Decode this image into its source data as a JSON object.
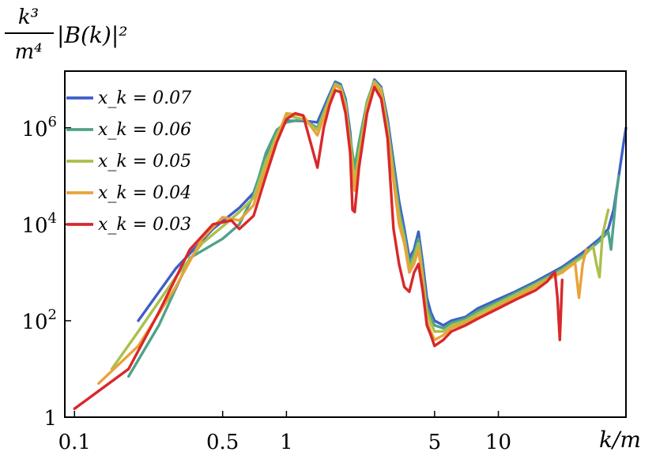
{
  "chart_data": {
    "type": "line",
    "title": "",
    "xlabel": "k/m",
    "ylabel": "k³/m⁴|B(k)|²",
    "ylabel_parts": {
      "num": "k³",
      "den": "m⁴",
      "rest": "|B(k)|²"
    },
    "x_scale": "log",
    "y_scale": "log",
    "xlim": [
      0.09,
      40
    ],
    "ylim": [
      1,
      15000000
    ],
    "x_ticks": [
      {
        "value": 0.1,
        "label": "0.1"
      },
      {
        "value": 0.5,
        "label": "0.5"
      },
      {
        "value": 1,
        "label": "1"
      },
      {
        "value": 5,
        "label": "5"
      },
      {
        "value": 10,
        "label": "10"
      }
    ],
    "y_ticks": [
      {
        "value": 1,
        "label": "1",
        "exp": ""
      },
      {
        "value": 100,
        "label": "10",
        "exp": "2"
      },
      {
        "value": 10000,
        "label": "10",
        "exp": "4"
      },
      {
        "value": 1000000,
        "label": "10",
        "exp": "6"
      }
    ],
    "grid": false,
    "legend_position": "top-left",
    "series": [
      {
        "name": "x_k = 0.07",
        "color": "#3f5fc8",
        "points": [
          [
            0.2,
            100
          ],
          [
            0.3,
            1200
          ],
          [
            0.45,
            8000
          ],
          [
            0.6,
            22000
          ],
          [
            0.7,
            45000
          ],
          [
            0.8,
            250000
          ],
          [
            0.9,
            800000
          ],
          [
            1.0,
            1400000
          ],
          [
            1.2,
            1400000
          ],
          [
            1.4,
            1300000
          ],
          [
            1.6,
            5000000
          ],
          [
            1.7,
            9000000
          ],
          [
            1.8,
            8000000
          ],
          [
            1.9,
            4000000
          ],
          [
            2.0,
            800000
          ],
          [
            2.05,
            200000
          ],
          [
            2.1,
            100000
          ],
          [
            2.2,
            400000
          ],
          [
            2.4,
            3000000
          ],
          [
            2.6,
            10000000
          ],
          [
            2.8,
            7000000
          ],
          [
            3.0,
            1500000
          ],
          [
            3.2,
            200000
          ],
          [
            3.4,
            30000
          ],
          [
            3.6,
            8000
          ],
          [
            3.8,
            2000
          ],
          [
            4.0,
            3000
          ],
          [
            4.2,
            7000
          ],
          [
            4.4,
            1500
          ],
          [
            4.6,
            300
          ],
          [
            4.8,
            150
          ],
          [
            5.0,
            100
          ],
          [
            5.5,
            80
          ],
          [
            6,
            100
          ],
          [
            7,
            120
          ],
          [
            8,
            180
          ],
          [
            10,
            280
          ],
          [
            12,
            400
          ],
          [
            15,
            650
          ],
          [
            20,
            1300
          ],
          [
            25,
            2600
          ],
          [
            30,
            5000
          ],
          [
            33,
            8000
          ],
          [
            35,
            20000
          ],
          [
            37,
            100000
          ],
          [
            39,
            500000
          ],
          [
            40,
            1000000
          ]
        ]
      },
      {
        "name": "x_k = 0.06",
        "color": "#4fa388",
        "points": [
          [
            0.18,
            7
          ],
          [
            0.25,
            80
          ],
          [
            0.35,
            2000
          ],
          [
            0.5,
            5000
          ],
          [
            0.6,
            10000
          ],
          [
            0.7,
            40000
          ],
          [
            0.8,
            300000
          ],
          [
            0.9,
            900000
          ],
          [
            1.0,
            1300000
          ],
          [
            1.2,
            1500000
          ],
          [
            1.4,
            1000000
          ],
          [
            1.6,
            4500000
          ],
          [
            1.7,
            8500000
          ],
          [
            1.8,
            7500000
          ],
          [
            1.9,
            3500000
          ],
          [
            2.0,
            600000
          ],
          [
            2.1,
            150000
          ],
          [
            2.2,
            500000
          ],
          [
            2.4,
            3500000
          ],
          [
            2.6,
            9500000
          ],
          [
            2.8,
            6000000
          ],
          [
            3.0,
            1200000
          ],
          [
            3.2,
            150000
          ],
          [
            3.4,
            20000
          ],
          [
            3.6,
            6000
          ],
          [
            3.8,
            1500
          ],
          [
            4.0,
            2500
          ],
          [
            4.2,
            5000
          ],
          [
            4.4,
            1000
          ],
          [
            4.6,
            200
          ],
          [
            4.8,
            120
          ],
          [
            5.0,
            80
          ],
          [
            5.5,
            70
          ],
          [
            6,
            90
          ],
          [
            7,
            110
          ],
          [
            8,
            160
          ],
          [
            10,
            250
          ],
          [
            12,
            370
          ],
          [
            15,
            600
          ],
          [
            20,
            1200
          ],
          [
            25,
            2300
          ],
          [
            30,
            4500
          ],
          [
            33,
            7000
          ],
          [
            34,
            3000
          ],
          [
            36,
            40000
          ],
          [
            37,
            100000
          ]
        ]
      },
      {
        "name": "x_k = 0.05",
        "color": "#a9c04a",
        "points": [
          [
            0.15,
            10
          ],
          [
            0.2,
            60
          ],
          [
            0.3,
            800
          ],
          [
            0.4,
            4000
          ],
          [
            0.5,
            9000
          ],
          [
            0.6,
            18000
          ],
          [
            0.7,
            35000
          ],
          [
            0.8,
            200000
          ],
          [
            0.9,
            700000
          ],
          [
            1.0,
            1800000
          ],
          [
            1.2,
            1500000
          ],
          [
            1.4,
            900000
          ],
          [
            1.6,
            4000000
          ],
          [
            1.7,
            8000000
          ],
          [
            1.8,
            7000000
          ],
          [
            1.9,
            3000000
          ],
          [
            2.0,
            500000
          ],
          [
            2.1,
            80000
          ],
          [
            2.2,
            300000
          ],
          [
            2.4,
            3000000
          ],
          [
            2.6,
            9000000
          ],
          [
            2.8,
            6500000
          ],
          [
            3.0,
            1000000
          ],
          [
            3.2,
            100000
          ],
          [
            3.4,
            15000
          ],
          [
            3.6,
            5000
          ],
          [
            3.8,
            1200
          ],
          [
            4.0,
            2000
          ],
          [
            4.2,
            4000
          ],
          [
            4.4,
            800
          ],
          [
            4.6,
            150
          ],
          [
            4.8,
            90
          ],
          [
            5.0,
            60
          ],
          [
            5.5,
            60
          ],
          [
            6,
            80
          ],
          [
            7,
            100
          ],
          [
            8,
            140
          ],
          [
            10,
            230
          ],
          [
            12,
            340
          ],
          [
            15,
            560
          ],
          [
            20,
            1100
          ],
          [
            25,
            2100
          ],
          [
            28,
            3500
          ],
          [
            29,
            1500
          ],
          [
            30,
            800
          ],
          [
            31,
            6000
          ],
          [
            33,
            20000
          ]
        ]
      },
      {
        "name": "x_k = 0.04",
        "color": "#e8a33a",
        "points": [
          [
            0.13,
            5
          ],
          [
            0.2,
            30
          ],
          [
            0.3,
            500
          ],
          [
            0.4,
            5000
          ],
          [
            0.5,
            14000
          ],
          [
            0.6,
            12000
          ],
          [
            0.7,
            25000
          ],
          [
            0.8,
            150000
          ],
          [
            0.9,
            600000
          ],
          [
            1.0,
            2000000
          ],
          [
            1.2,
            1800000
          ],
          [
            1.4,
            700000
          ],
          [
            1.6,
            3500000
          ],
          [
            1.7,
            7500000
          ],
          [
            1.8,
            6500000
          ],
          [
            1.9,
            2500000
          ],
          [
            2.0,
            400000
          ],
          [
            2.1,
            50000
          ],
          [
            2.2,
            200000
          ],
          [
            2.4,
            2500000
          ],
          [
            2.6,
            8500000
          ],
          [
            2.8,
            5000000
          ],
          [
            3.0,
            800000
          ],
          [
            3.2,
            80000
          ],
          [
            3.4,
            10000
          ],
          [
            3.6,
            4000
          ],
          [
            3.8,
            1000
          ],
          [
            4.0,
            1500
          ],
          [
            4.2,
            3000
          ],
          [
            4.4,
            600
          ],
          [
            4.6,
            100
          ],
          [
            4.8,
            60
          ],
          [
            5.0,
            40
          ],
          [
            5.5,
            50
          ],
          [
            6,
            70
          ],
          [
            7,
            90
          ],
          [
            8,
            120
          ],
          [
            10,
            200
          ],
          [
            12,
            300
          ],
          [
            15,
            500
          ],
          [
            18,
            800
          ],
          [
            20,
            1000
          ],
          [
            23,
            1600
          ],
          [
            24,
            300
          ],
          [
            25,
            1500
          ],
          [
            26,
            3000
          ]
        ]
      },
      {
        "name": "x_k = 0.03",
        "color": "#d8282a",
        "points": [
          [
            0.1,
            1.5
          ],
          [
            0.18,
            10
          ],
          [
            0.25,
            150
          ],
          [
            0.35,
            3000
          ],
          [
            0.45,
            10000
          ],
          [
            0.55,
            12000
          ],
          [
            0.6,
            8000
          ],
          [
            0.7,
            15000
          ],
          [
            0.8,
            100000
          ],
          [
            0.9,
            500000
          ],
          [
            1.0,
            1500000
          ],
          [
            1.1,
            2000000
          ],
          [
            1.2,
            1800000
          ],
          [
            1.4,
            150000
          ],
          [
            1.5,
            1000000
          ],
          [
            1.6,
            3000000
          ],
          [
            1.7,
            6000000
          ],
          [
            1.8,
            5500000
          ],
          [
            1.9,
            2000000
          ],
          [
            2.0,
            300000
          ],
          [
            2.05,
            20000
          ],
          [
            2.1,
            18000
          ],
          [
            2.2,
            150000
          ],
          [
            2.4,
            2000000
          ],
          [
            2.6,
            7000000
          ],
          [
            2.8,
            4000000
          ],
          [
            3.0,
            600000
          ],
          [
            3.2,
            8000
          ],
          [
            3.4,
            1500
          ],
          [
            3.6,
            500
          ],
          [
            3.8,
            400
          ],
          [
            4.0,
            1000
          ],
          [
            4.2,
            1500
          ],
          [
            4.4,
            400
          ],
          [
            4.6,
            80
          ],
          [
            4.8,
            50
          ],
          [
            5.0,
            30
          ],
          [
            5.5,
            40
          ],
          [
            6,
            60
          ],
          [
            7,
            80
          ],
          [
            8,
            110
          ],
          [
            10,
            180
          ],
          [
            12,
            270
          ],
          [
            15,
            430
          ],
          [
            17,
            650
          ],
          [
            18,
            900
          ],
          [
            18.5,
            1000
          ],
          [
            19,
            300
          ],
          [
            19.5,
            40
          ],
          [
            20,
            700
          ]
        ]
      }
    ]
  }
}
